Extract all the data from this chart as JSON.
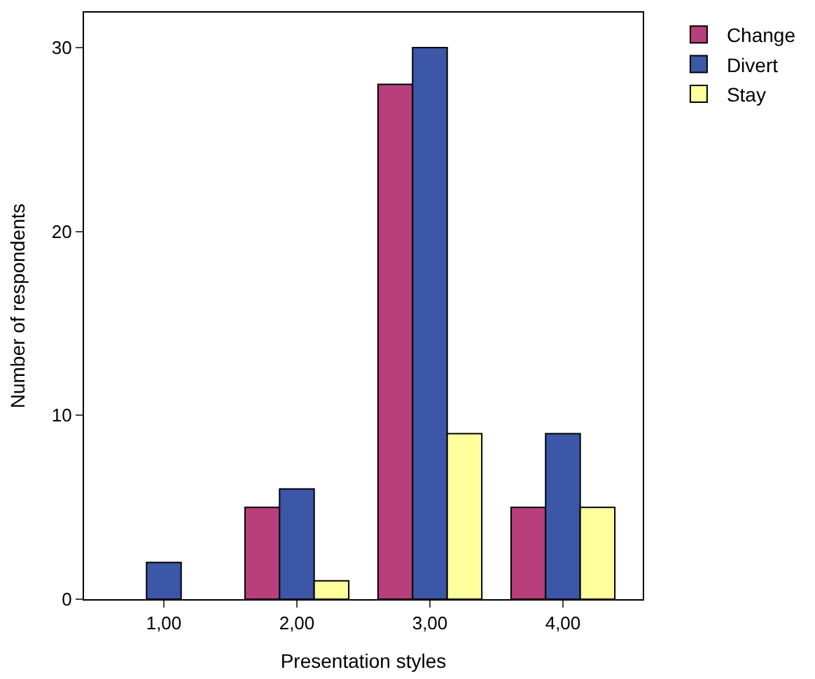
{
  "chart_data": {
    "type": "bar",
    "xlabel": "Presentation styles",
    "ylabel": "Number of respondents",
    "categories": [
      "1,00",
      "2,00",
      "3,00",
      "4,00"
    ],
    "series": [
      {
        "name": "Change",
        "color": "#b93e7c",
        "values": [
          null,
          5,
          28,
          5
        ]
      },
      {
        "name": "Divert",
        "color": "#3c57a8",
        "values": [
          2,
          6,
          30,
          9
        ]
      },
      {
        "name": "Stay",
        "color": "#ffff9e",
        "values": [
          null,
          1,
          9,
          5
        ]
      }
    ],
    "ylim": [
      0,
      31.9
    ],
    "yticks": [
      0,
      10,
      20,
      30
    ],
    "legend": "top right"
  }
}
